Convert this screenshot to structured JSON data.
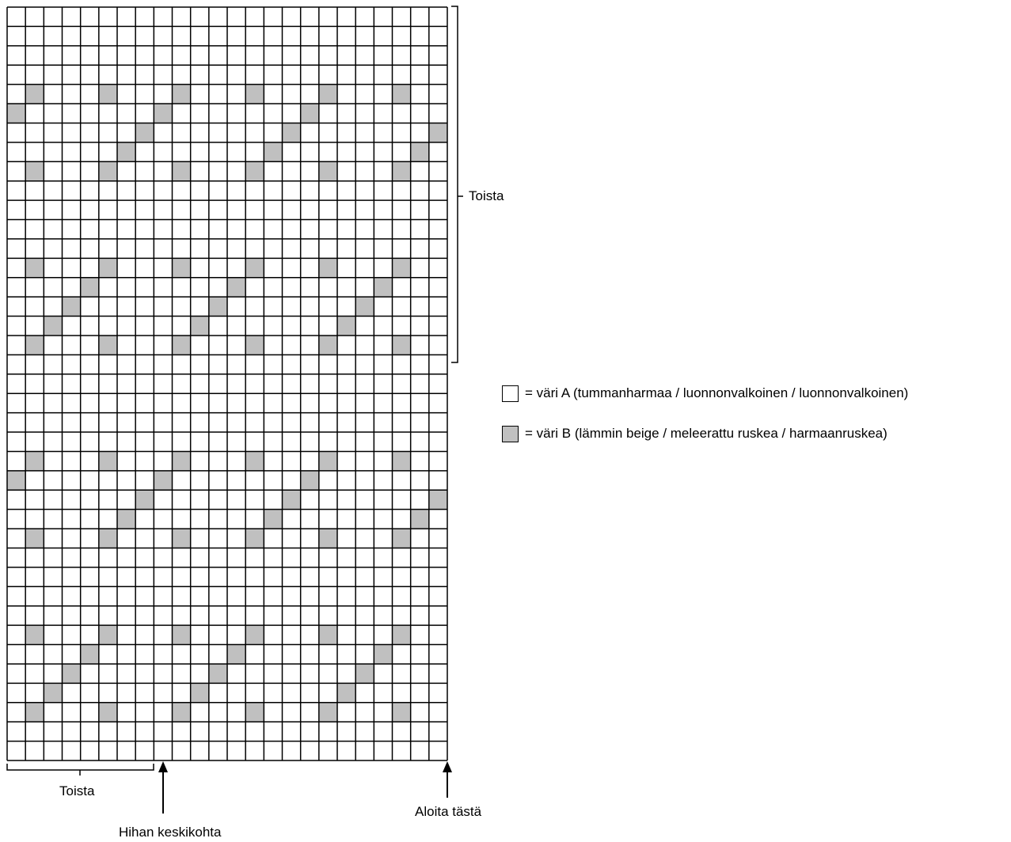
{
  "chart_data": {
    "type": "knitting-chart",
    "columns": 24,
    "rows": 39,
    "color_a": "#ffffff",
    "color_b": "#c0c0c0",
    "grid_line_color": "#000000",
    "colored_cells_note": "row 1 = top row, column 1 = leftmost column; listed cells are colour B",
    "colored_cells": [
      [
        5,
        2
      ],
      [
        5,
        6
      ],
      [
        5,
        10
      ],
      [
        5,
        14
      ],
      [
        5,
        18
      ],
      [
        5,
        22
      ],
      [
        6,
        1
      ],
      [
        6,
        9
      ],
      [
        6,
        17
      ],
      [
        7,
        8
      ],
      [
        7,
        16
      ],
      [
        7,
        24
      ],
      [
        8,
        7
      ],
      [
        8,
        15
      ],
      [
        8,
        23
      ],
      [
        9,
        2
      ],
      [
        9,
        6
      ],
      [
        9,
        10
      ],
      [
        9,
        14
      ],
      [
        9,
        18
      ],
      [
        9,
        22
      ],
      [
        14,
        2
      ],
      [
        14,
        6
      ],
      [
        14,
        10
      ],
      [
        14,
        14
      ],
      [
        14,
        18
      ],
      [
        14,
        22
      ],
      [
        15,
        5
      ],
      [
        15,
        13
      ],
      [
        15,
        21
      ],
      [
        16,
        4
      ],
      [
        16,
        12
      ],
      [
        16,
        20
      ],
      [
        17,
        3
      ],
      [
        17,
        11
      ],
      [
        17,
        19
      ],
      [
        18,
        2
      ],
      [
        18,
        6
      ],
      [
        18,
        10
      ],
      [
        18,
        14
      ],
      [
        18,
        18
      ],
      [
        18,
        22
      ],
      [
        24,
        2
      ],
      [
        24,
        6
      ],
      [
        24,
        10
      ],
      [
        24,
        14
      ],
      [
        24,
        18
      ],
      [
        24,
        22
      ],
      [
        25,
        1
      ],
      [
        25,
        9
      ],
      [
        25,
        17
      ],
      [
        26,
        8
      ],
      [
        26,
        16
      ],
      [
        26,
        24
      ],
      [
        27,
        7
      ],
      [
        27,
        15
      ],
      [
        27,
        23
      ],
      [
        28,
        2
      ],
      [
        28,
        6
      ],
      [
        28,
        10
      ],
      [
        28,
        14
      ],
      [
        28,
        18
      ],
      [
        28,
        22
      ],
      [
        33,
        2
      ],
      [
        33,
        6
      ],
      [
        33,
        10
      ],
      [
        33,
        14
      ],
      [
        33,
        18
      ],
      [
        33,
        22
      ],
      [
        34,
        5
      ],
      [
        34,
        13
      ],
      [
        34,
        21
      ],
      [
        35,
        4
      ],
      [
        35,
        12
      ],
      [
        35,
        20
      ],
      [
        36,
        3
      ],
      [
        36,
        11
      ],
      [
        36,
        19
      ],
      [
        37,
        2
      ],
      [
        37,
        6
      ],
      [
        37,
        10
      ],
      [
        37,
        14
      ],
      [
        37,
        18
      ],
      [
        37,
        22
      ]
    ],
    "vertical_repeat_rows": [
      1,
      19
    ],
    "horizontal_repeat_columns": [
      1,
      8
    ],
    "sleeve_center_after_column": 8
  },
  "labels": {
    "repeat_right": "Toista",
    "repeat_bottom": "Toista",
    "sleeve_center": "Hihan keskikohta",
    "start_here": "Aloita tästä"
  },
  "legend": [
    {
      "color": "#ffffff",
      "text": "= väri A (tummanharmaa / luonnonvalkoinen / luonnonvalkoinen)"
    },
    {
      "color": "#c0c0c0",
      "text": "= väri B (lämmin beige / meleerattu ruskea / harmaanruskea)"
    }
  ]
}
